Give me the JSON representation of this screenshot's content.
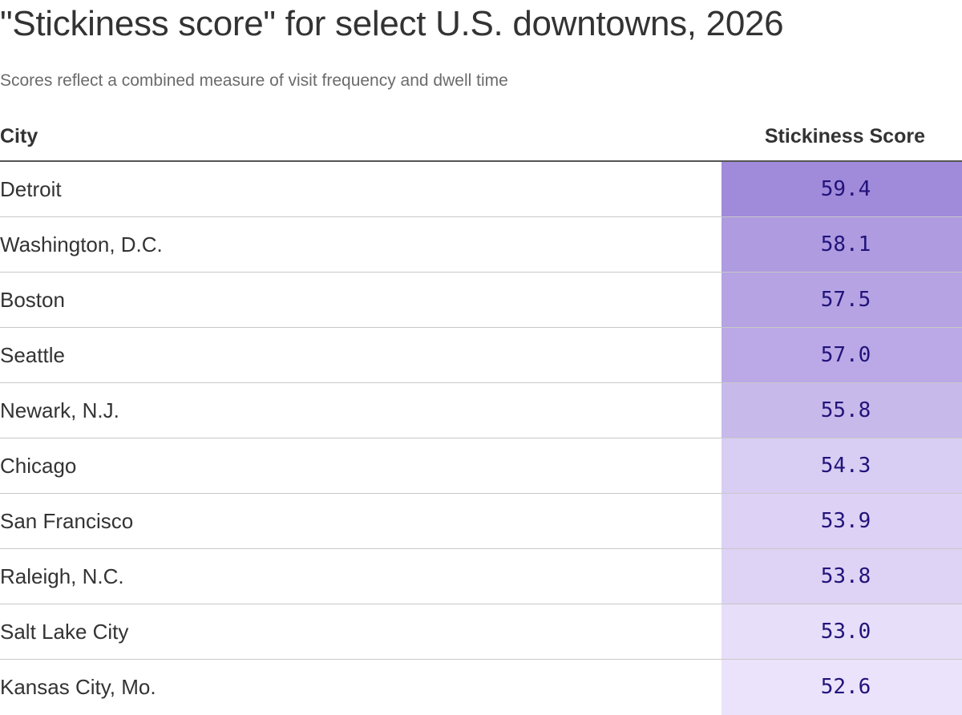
{
  "header": {
    "title": "\"Stickiness score\" for select U.S. downtowns, 2026",
    "subtitle": "Scores reflect a combined measure of visit frequency and dwell time"
  },
  "table": {
    "columns": [
      "City",
      "Stickiness Score"
    ]
  },
  "colors": {
    "low": "#ebe3fb",
    "high": "#a08ada",
    "value_text": "#22137a"
  },
  "chart_data": {
    "type": "table",
    "title": "\"Stickiness score\" for select U.S. downtowns, 2026",
    "subtitle": "Scores reflect a combined measure of visit frequency and dwell time",
    "columns": [
      "City",
      "Stickiness Score"
    ],
    "categories": [
      "Detroit",
      "Washington, D.C.",
      "Boston",
      "Seattle",
      "Newark, N.J.",
      "Chicago",
      "San Francisco",
      "Raleigh, N.C.",
      "Salt Lake City",
      "Kansas City, Mo."
    ],
    "values": [
      "59.4",
      "58.1",
      "57.5",
      "57.0",
      "55.8",
      "54.3",
      "53.9",
      "53.8",
      "53.0",
      "52.6"
    ]
  }
}
